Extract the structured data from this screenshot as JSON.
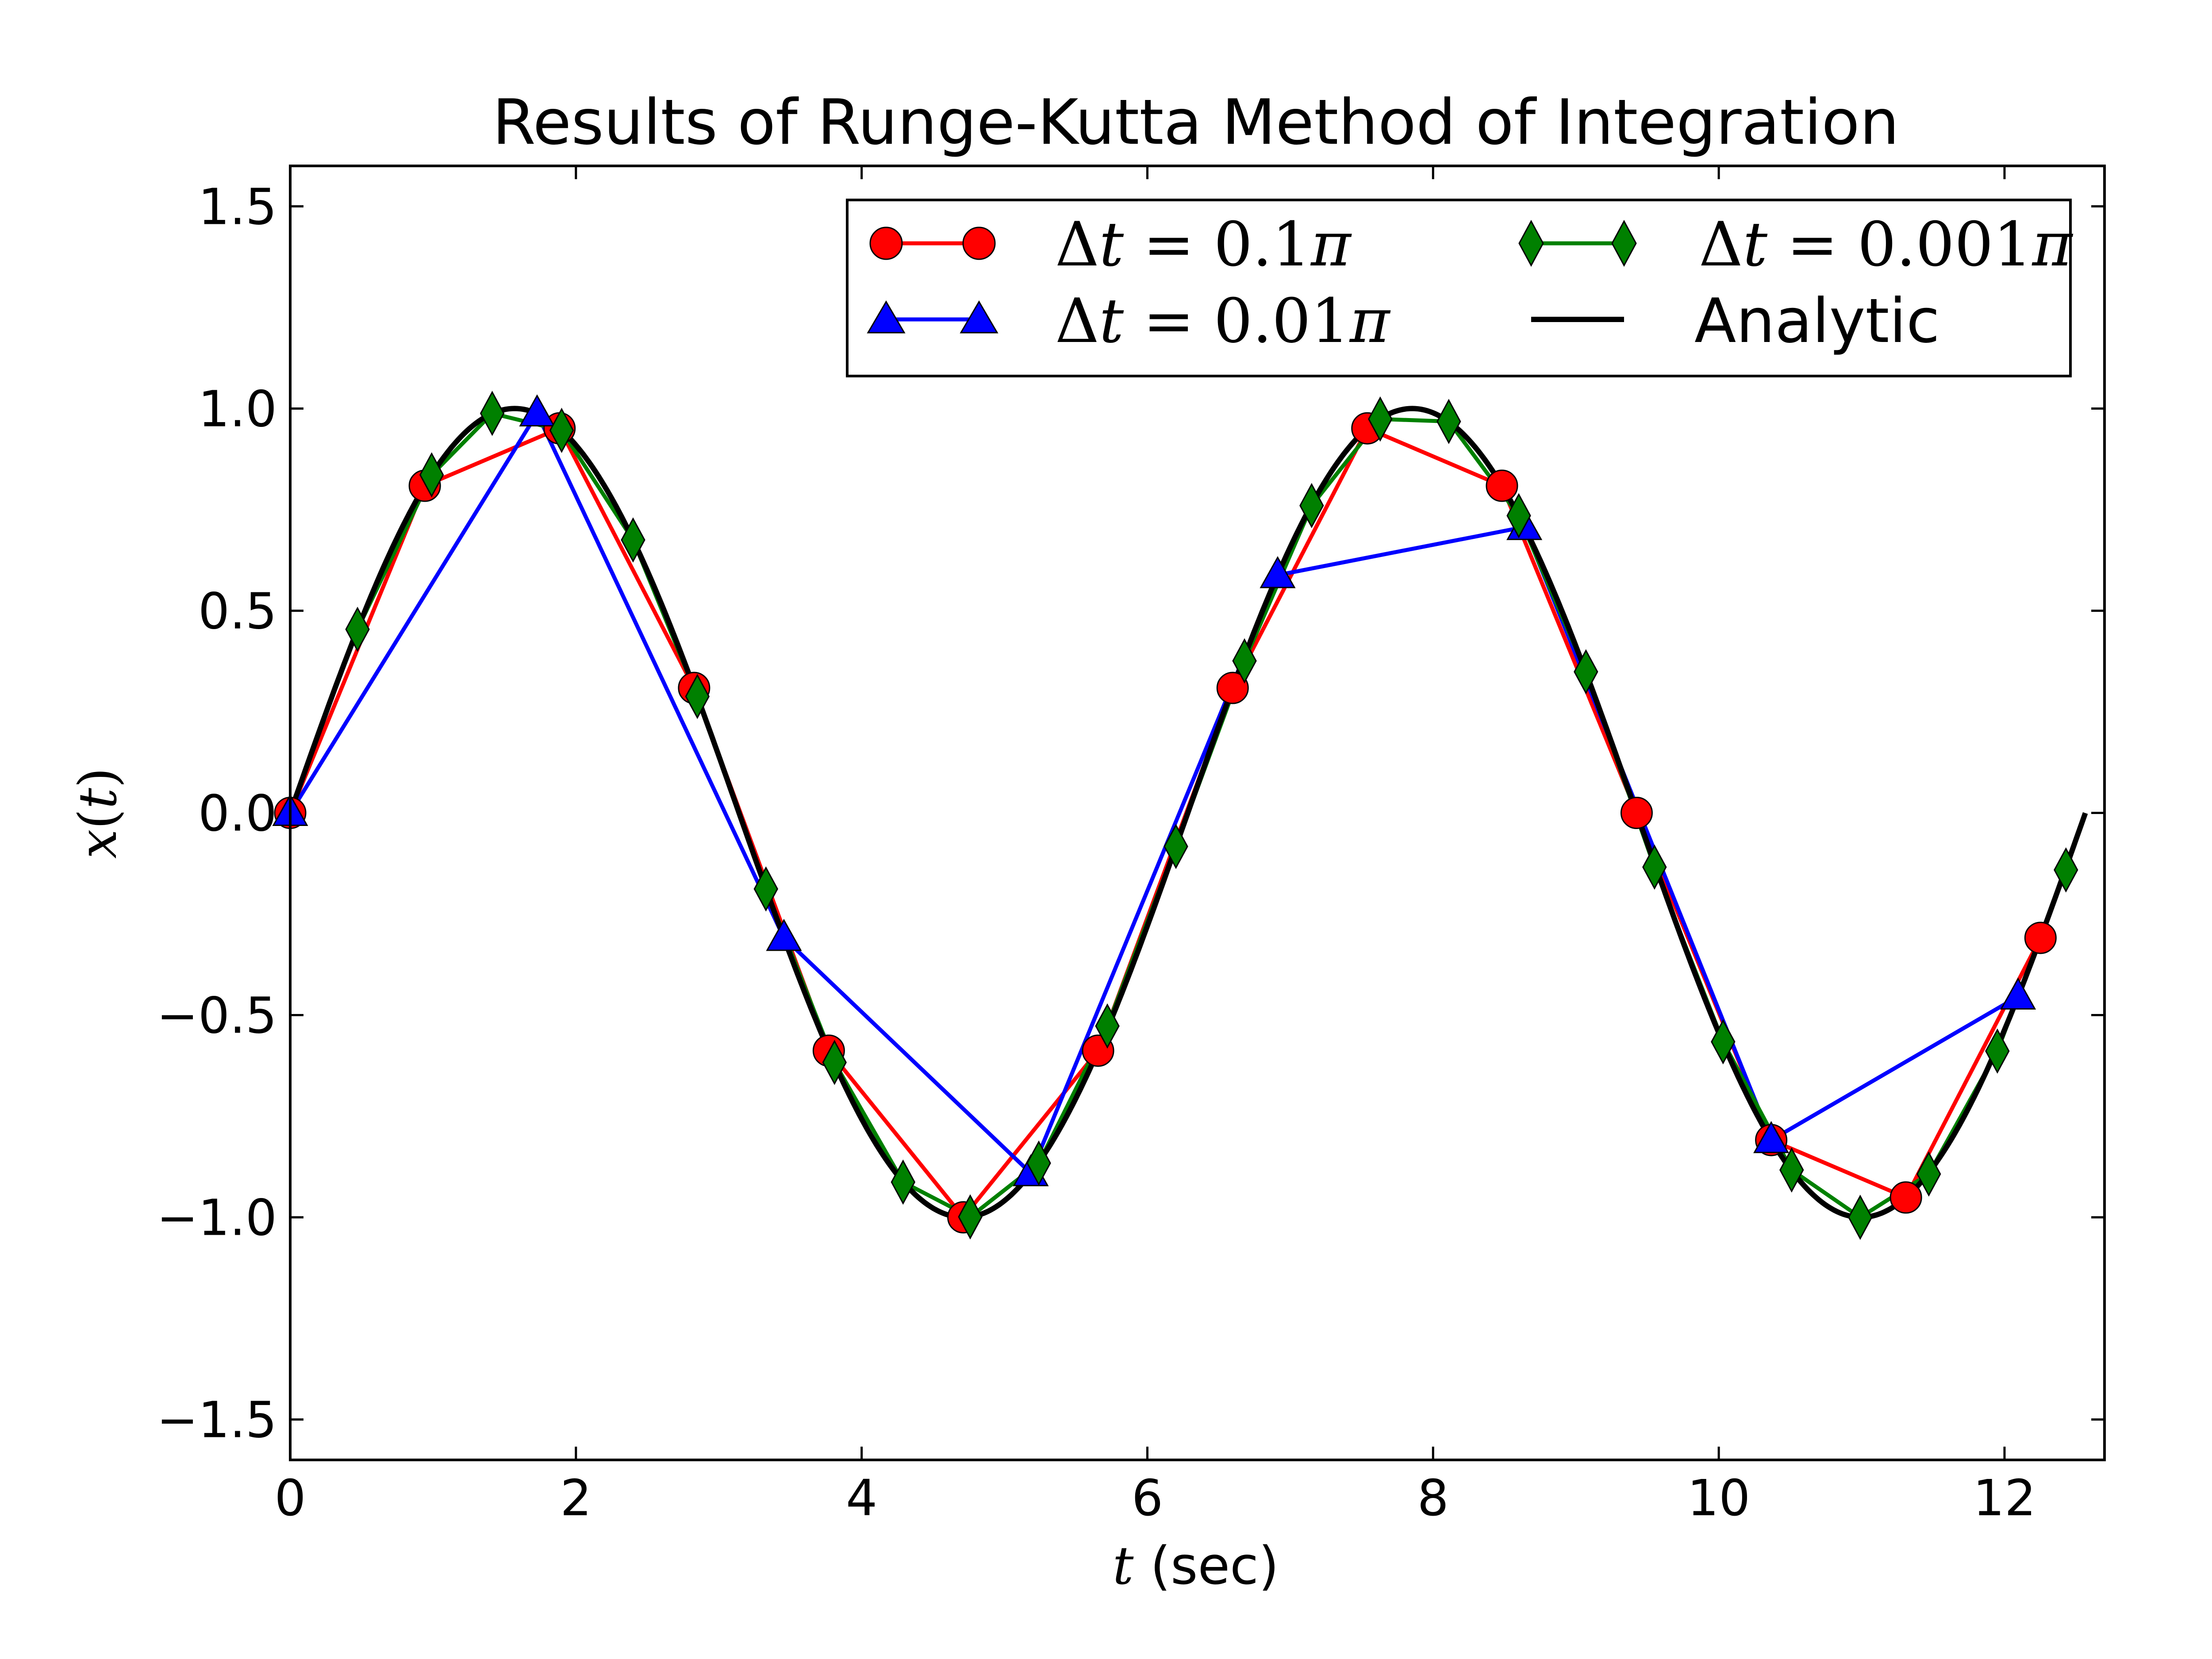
{
  "chart_data": {
    "type": "line",
    "title": "Results of Runge-Kutta Method of Integration",
    "xlabel": {
      "var": "t",
      "rest": " (sec)"
    },
    "ylabel": {
      "var": "x",
      "open": "(",
      "arg": "t",
      "close": ")"
    },
    "xlim": [
      0,
      12.7
    ],
    "ylim": [
      -1.6,
      1.6
    ],
    "xticks": [
      "0",
      "2",
      "4",
      "6",
      "8",
      "10",
      "12"
    ],
    "xtick_values": [
      0,
      2,
      4,
      6,
      8,
      10,
      12
    ],
    "yticks": [
      "−1.5",
      "−1.0",
      "−0.5",
      "0.0",
      "0.5",
      "1.0",
      "1.5"
    ],
    "ytick_values": [
      -1.5,
      -1.0,
      -0.5,
      0.0,
      0.5,
      1.0,
      1.5
    ],
    "grid": false,
    "legend_position": "top-right",
    "series": [
      {
        "name": "Δt = 0.1π",
        "legend_label": {
          "delta": "Δ",
          "var": "t",
          "eq": " = ",
          "val": "0.1",
          "pi": "π"
        },
        "color": "#ff0000",
        "marker": "circle",
        "x": [
          0,
          0.942,
          1.885,
          2.827,
          3.77,
          4.712,
          5.655,
          6.597,
          7.54,
          8.482,
          9.425,
          10.367,
          11.31,
          12.252
        ],
        "y": [
          0.0,
          0.809,
          0.951,
          0.309,
          -0.588,
          -1.0,
          -0.588,
          0.309,
          0.951,
          0.809,
          0.0,
          -0.809,
          -0.951,
          -0.309
        ]
      },
      {
        "name": "Δt = 0.01π",
        "legend_label": {
          "delta": "Δ",
          "var": "t",
          "eq": " = ",
          "val": "0.01",
          "pi": "π"
        },
        "color": "#0000ff",
        "marker": "triangle",
        "x": [
          0,
          1.728,
          3.456,
          5.184,
          6.912,
          8.639,
          10.367,
          12.095
        ],
        "y": [
          0.0,
          0.988,
          -0.309,
          -0.891,
          0.588,
          0.707,
          -0.809,
          -0.454
        ]
      },
      {
        "name": "Δt = 0.001π",
        "legend_label": {
          "delta": "Δ",
          "var": "t",
          "eq": " = ",
          "val": "0.001",
          "pi": "π"
        },
        "color": "#008000",
        "marker": "diamond",
        "x": [
          0.471,
          0.99,
          1.414,
          1.9,
          2.4,
          2.85,
          3.33,
          3.81,
          4.29,
          4.76,
          5.24,
          5.72,
          6.2,
          6.68,
          7.15,
          7.63,
          8.11,
          8.6,
          9.07,
          9.55,
          10.03,
          10.51,
          10.99,
          11.47,
          11.95,
          12.43
        ],
        "y": [
          0.454,
          0.836,
          0.988,
          0.946,
          0.675,
          0.288,
          -0.188,
          -0.617,
          -0.913,
          -0.999,
          -0.866,
          -0.527,
          -0.083,
          0.376,
          0.76,
          0.974,
          0.968,
          0.735,
          0.349,
          -0.134,
          -0.566,
          -0.883,
          -1.0,
          -0.893,
          -0.589,
          -0.141
        ]
      },
      {
        "name": "Analytic",
        "legend_label": {
          "text": "Analytic"
        },
        "color": "#000000",
        "marker": "none",
        "function": "sin",
        "x_range": [
          0,
          12.566
        ]
      }
    ]
  }
}
